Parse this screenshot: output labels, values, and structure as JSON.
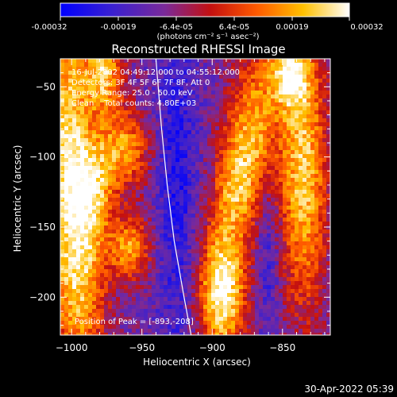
{
  "colorbar": {
    "tick_labels": [
      "-0.00032",
      "-0.00019",
      "-6.4e-05",
      "6.4e-05",
      "0.00019",
      "0.00032"
    ],
    "unit_label": "(photons cm⁻² s⁻¹ asec⁻²)",
    "range": [
      -0.00032,
      0.00032
    ],
    "colormap": [
      "#0000ff",
      "#5a1fb0",
      "#8a1a7a",
      "#c41010",
      "#ff5a00",
      "#ffc000",
      "#ffffff"
    ]
  },
  "chart_data": {
    "type": "heatmap",
    "title": "Reconstructed RHESSI Image",
    "xlabel": "Heliocentric X (arcsec)",
    "ylabel": "Heliocentric Y (arcsec)",
    "xlim": [
      -1008,
      -816
    ],
    "ylim": [
      -227,
      -30
    ],
    "x_ticks": [
      -1000,
      -950,
      -900,
      -850
    ],
    "y_ticks": [
      -50,
      -100,
      -150,
      -200
    ],
    "x_tick_labels": [
      "−1000",
      "−950",
      "−900",
      "−850"
    ],
    "y_tick_labels": [
      "−50",
      "−100",
      "−150",
      "−200"
    ],
    "limb_curve": [
      [
        -940,
        -30
      ],
      [
        -936,
        -80
      ],
      [
        -932,
        -120
      ],
      [
        -927,
        -160
      ],
      [
        -920,
        -200
      ],
      [
        -915,
        -227
      ]
    ],
    "peak": [
      -893,
      -208
    ],
    "annotations": [
      "16-Jul-2002 04:49:12.000 to 04:55:12.000",
      "Detectors: 3F 4F 5F 6F 7F 8F, Att 0",
      "Energy Range: 25.0 - 50.0 keV",
      "Clean    Total counts: 4.80E+03"
    ],
    "peak_label": "Position of Peak = [-893,-208]",
    "grid": false
  },
  "footer": {
    "timestamp": "30-Apr-2022 05:39"
  }
}
